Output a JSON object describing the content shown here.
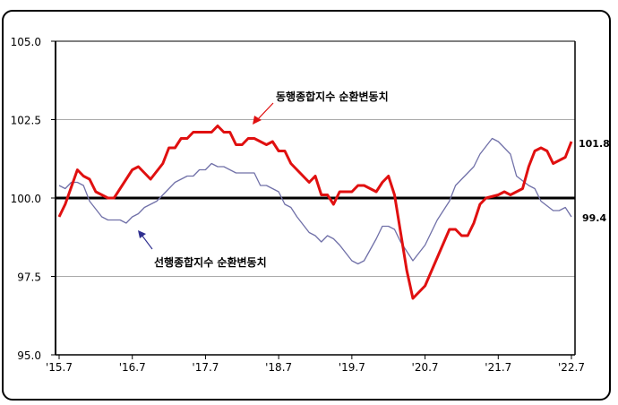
{
  "chart_data": {
    "type": "line",
    "title": "",
    "xlabel": "",
    "ylabel": "",
    "ylim": [
      95.0,
      105.0
    ],
    "yticks": [
      "105.0",
      "102.5",
      "100.0",
      "97.5",
      "95.0"
    ],
    "xticks": [
      "'15.7",
      "'16.7",
      "'17.7",
      "'18.7",
      "'19.7",
      "'20.7",
      "'21.7",
      "'22.7"
    ],
    "xlim": [
      "15.7",
      "22.7"
    ],
    "grid": "horizontal",
    "reference_line": 100.0,
    "series": [
      {
        "name": "동행종합지수 순환변동치",
        "color": "#e01010",
        "end_label": "101.8",
        "points": [
          [
            "15.7",
            99.4
          ],
          [
            "15.8",
            99.8
          ],
          [
            "15.10",
            100.9
          ],
          [
            "15.11",
            100.7
          ],
          [
            "15.12",
            100.6
          ],
          [
            "16.1",
            100.2
          ],
          [
            "16.3",
            100.0
          ],
          [
            "16.4",
            100.0
          ],
          [
            "16.7",
            100.9
          ],
          [
            "16.8",
            101.0
          ],
          [
            "16.10",
            100.6
          ],
          [
            "16.12",
            101.1
          ],
          [
            "17.1",
            101.6
          ],
          [
            "17.2",
            101.6
          ],
          [
            "17.3",
            101.9
          ],
          [
            "17.4",
            101.9
          ],
          [
            "17.5",
            102.1
          ],
          [
            "17.8",
            102.1
          ],
          [
            "17.9",
            102.3
          ],
          [
            "17.10",
            102.1
          ],
          [
            "17.11",
            102.1
          ],
          [
            "17.12",
            101.7
          ],
          [
            "18.1",
            101.7
          ],
          [
            "18.2",
            101.9
          ],
          [
            "18.3",
            101.9
          ],
          [
            "18.5",
            101.7
          ],
          [
            "18.6",
            101.8
          ],
          [
            "18.7",
            101.5
          ],
          [
            "18.8",
            101.5
          ],
          [
            "18.9",
            101.1
          ],
          [
            "18.12",
            100.5
          ],
          [
            "19.1",
            100.7
          ],
          [
            "19.2",
            100.1
          ],
          [
            "19.3",
            100.1
          ],
          [
            "19.4",
            99.8
          ],
          [
            "19.5",
            100.2
          ],
          [
            "19.7",
            100.2
          ],
          [
            "19.8",
            100.4
          ],
          [
            "19.9",
            100.4
          ],
          [
            "19.11",
            100.2
          ],
          [
            "19.12",
            100.5
          ],
          [
            "20.1",
            100.7
          ],
          [
            "20.2",
            100.1
          ],
          [
            "20.4",
            97.7
          ],
          [
            "20.5",
            96.8
          ],
          [
            "20.7",
            97.2
          ],
          [
            "20.11",
            99.0
          ],
          [
            "20.12",
            99.0
          ],
          [
            "21.1",
            98.8
          ],
          [
            "21.2",
            98.8
          ],
          [
            "21.3",
            99.2
          ],
          [
            "21.4",
            99.8
          ],
          [
            "21.5",
            100.0
          ],
          [
            "21.7",
            100.1
          ],
          [
            "21.8",
            100.2
          ],
          [
            "21.9",
            100.1
          ],
          [
            "21.11",
            100.3
          ],
          [
            "21.12",
            101.0
          ],
          [
            "22.1",
            101.5
          ],
          [
            "22.2",
            101.6
          ],
          [
            "22.3",
            101.5
          ],
          [
            "22.4",
            101.1
          ],
          [
            "22.6",
            101.3
          ],
          [
            "22.7",
            101.8
          ]
        ]
      },
      {
        "name": "선행종합지수 순환변동치",
        "color": "#7070a8",
        "end_label": "99.4",
        "points": [
          [
            "15.7",
            100.4
          ],
          [
            "15.8",
            100.3
          ],
          [
            "15.9",
            100.5
          ],
          [
            "15.10",
            100.5
          ],
          [
            "15.11",
            100.4
          ],
          [
            "15.12",
            99.9
          ],
          [
            "16.2",
            99.4
          ],
          [
            "16.3",
            99.3
          ],
          [
            "16.5",
            99.3
          ],
          [
            "16.6",
            99.2
          ],
          [
            "16.7",
            99.4
          ],
          [
            "16.8",
            99.5
          ],
          [
            "16.9",
            99.7
          ],
          [
            "16.11",
            99.9
          ],
          [
            "16.12",
            100.1
          ],
          [
            "17.2",
            100.5
          ],
          [
            "17.4",
            100.7
          ],
          [
            "17.5",
            100.7
          ],
          [
            "17.6",
            100.9
          ],
          [
            "17.7",
            100.9
          ],
          [
            "17.8",
            101.1
          ],
          [
            "17.9",
            101.0
          ],
          [
            "17.10",
            101.0
          ],
          [
            "17.12",
            100.8
          ],
          [
            "18.3",
            100.8
          ],
          [
            "18.4",
            100.4
          ],
          [
            "18.5",
            100.4
          ],
          [
            "18.7",
            100.2
          ],
          [
            "18.8",
            99.8
          ],
          [
            "18.9",
            99.7
          ],
          [
            "18.10",
            99.4
          ],
          [
            "18.12",
            98.9
          ],
          [
            "19.1",
            98.8
          ],
          [
            "19.2",
            98.6
          ],
          [
            "19.3",
            98.8
          ],
          [
            "19.4",
            98.7
          ],
          [
            "19.5",
            98.5
          ],
          [
            "19.7",
            98.0
          ],
          [
            "19.8",
            97.9
          ],
          [
            "19.9",
            98.0
          ],
          [
            "19.11",
            98.7
          ],
          [
            "19.12",
            99.1
          ],
          [
            "20.1",
            99.1
          ],
          [
            "20.2",
            99.0
          ],
          [
            "20.3",
            98.6
          ],
          [
            "20.5",
            98.0
          ],
          [
            "20.7",
            98.5
          ],
          [
            "20.9",
            99.3
          ],
          [
            "20.11",
            99.9
          ],
          [
            "20.12",
            100.4
          ],
          [
            "21.1",
            100.6
          ],
          [
            "21.3",
            101.0
          ],
          [
            "21.4",
            101.4
          ],
          [
            "21.6",
            101.9
          ],
          [
            "21.7",
            101.8
          ],
          [
            "21.9",
            101.4
          ],
          [
            "21.10",
            100.7
          ],
          [
            "21.12",
            100.4
          ],
          [
            "22.1",
            100.3
          ],
          [
            "22.2",
            99.9
          ],
          [
            "22.4",
            99.6
          ],
          [
            "22.5",
            99.6
          ],
          [
            "22.6",
            99.7
          ],
          [
            "22.7",
            99.4
          ]
        ]
      }
    ]
  }
}
